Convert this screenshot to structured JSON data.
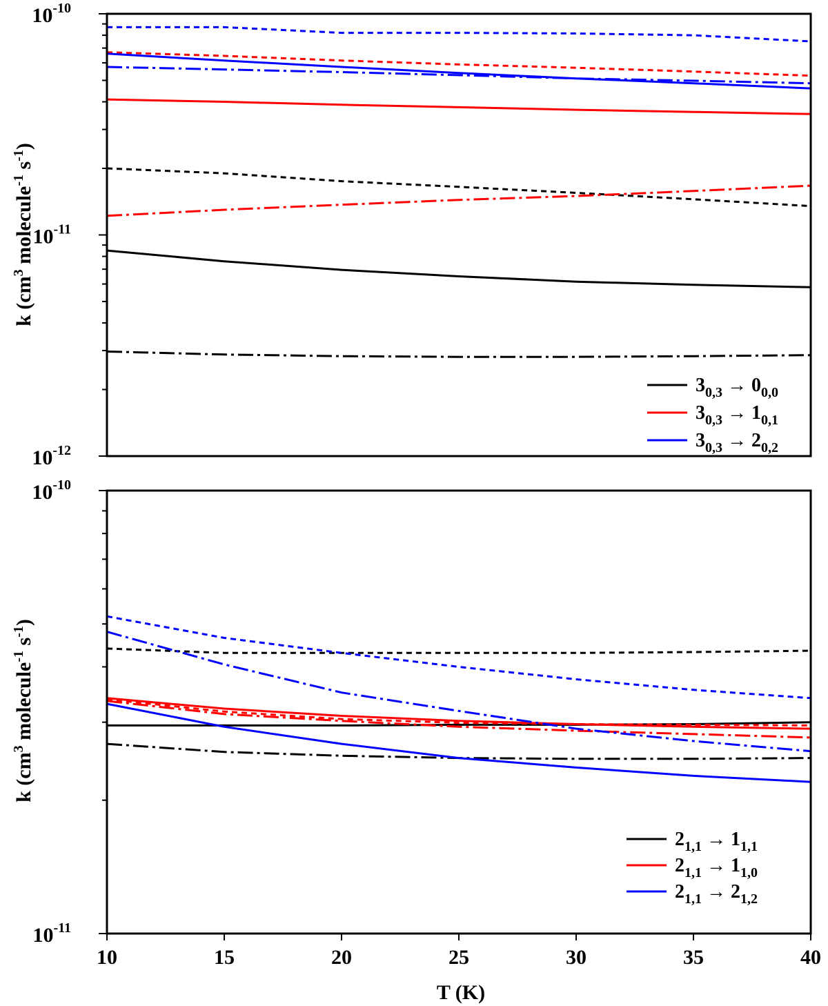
{
  "chart_data": [
    {
      "type": "line",
      "panel": "top",
      "ylabel": "k (cm3 molecule-1 s-1)",
      "ylabel_parts": {
        "main": "k (cm",
        "sup1": "3",
        "mid": " molecule",
        "sup2": "-1",
        "mid2": " s",
        "sup3": "-1",
        "end": ")"
      },
      "xlim": [
        10,
        40
      ],
      "ylim": [
        1e-12,
        1e-10
      ],
      "yscale": "log",
      "ytick_labels": [
        {
          "value": 1e-10,
          "base": "10",
          "exp": "-10"
        },
        {
          "value": 1e-11,
          "base": "10",
          "exp": "-11"
        },
        {
          "value": 1e-12,
          "base": "10",
          "exp": "-12"
        }
      ],
      "legend": [
        {
          "color": "#000000",
          "base": "3",
          "sub": "0,3",
          "arrow": " → ",
          "base2": "0",
          "sub2": "0,0"
        },
        {
          "color": "#ff0000",
          "base": "3",
          "sub": "0,3",
          "arrow": " → ",
          "base2": "1",
          "sub2": "0,1"
        },
        {
          "color": "#0000ff",
          "base": "3",
          "sub": "0,3",
          "arrow": " → ",
          "base2": "2",
          "sub2": "0,2"
        }
      ],
      "series": [
        {
          "name": "3_0,3 → 0_0,0 solid",
          "color": "#000000",
          "style": "solid",
          "x": [
            10,
            15,
            20,
            25,
            30,
            35,
            40
          ],
          "values": [
            8.5e-12,
            7.6e-12,
            6.95e-12,
            6.5e-12,
            6.15e-12,
            5.95e-12,
            5.8e-12
          ]
        },
        {
          "name": "3_0,3 → 0_0,0 dashed",
          "color": "#000000",
          "style": "dashed",
          "x": [
            10,
            15,
            20,
            25,
            30,
            35,
            40
          ],
          "values": [
            2e-11,
            1.9e-11,
            1.75e-11,
            1.65e-11,
            1.55e-11,
            1.45e-11,
            1.35e-11
          ]
        },
        {
          "name": "3_0,3 → 0_0,0 dashdot",
          "color": "#000000",
          "style": "dashdot",
          "x": [
            10,
            15,
            20,
            25,
            30,
            35,
            40
          ],
          "values": [
            2.97e-12,
            2.88e-12,
            2.83e-12,
            2.81e-12,
            2.81e-12,
            2.83e-12,
            2.86e-12
          ]
        },
        {
          "name": "3_0,3 → 1_0,1 solid",
          "color": "#ff0000",
          "style": "solid",
          "x": [
            10,
            15,
            20,
            25,
            30,
            35,
            40
          ],
          "values": [
            4.1e-11,
            4e-11,
            3.88e-11,
            3.78e-11,
            3.68e-11,
            3.6e-11,
            3.52e-11
          ]
        },
        {
          "name": "3_0,3 → 1_0,1 dashed",
          "color": "#ff0000",
          "style": "dashed",
          "x": [
            10,
            15,
            20,
            25,
            30,
            35,
            40
          ],
          "values": [
            6.7e-11,
            6.45e-11,
            6.15e-11,
            5.9e-11,
            5.7e-11,
            5.48e-11,
            5.25e-11
          ]
        },
        {
          "name": "3_0,3 → 1_0,1 dashdot",
          "color": "#ff0000",
          "style": "dashdot",
          "x": [
            10,
            15,
            20,
            25,
            30,
            35,
            40
          ],
          "values": [
            1.22e-11,
            1.3e-11,
            1.37e-11,
            1.44e-11,
            1.5e-11,
            1.58e-11,
            1.67e-11
          ]
        },
        {
          "name": "3_0,3 → 2_0,2 solid",
          "color": "#0000ff",
          "style": "solid",
          "x": [
            10,
            15,
            20,
            25,
            30,
            35,
            40
          ],
          "values": [
            6.6e-11,
            6.15e-11,
            5.75e-11,
            5.4e-11,
            5.1e-11,
            4.85e-11,
            4.6e-11
          ]
        },
        {
          "name": "3_0,3 → 2_0,2 dashed",
          "color": "#0000ff",
          "style": "dashed",
          "x": [
            10,
            15,
            20,
            25,
            30,
            35,
            40
          ],
          "values": [
            8.7e-11,
            8.7e-11,
            8.2e-11,
            8.2e-11,
            8.15e-11,
            8e-11,
            7.5e-11
          ]
        },
        {
          "name": "3_0,3 → 2_0,2 dashdot",
          "color": "#0000ff",
          "style": "dashdot",
          "x": [
            10,
            15,
            20,
            25,
            30,
            35,
            40
          ],
          "values": [
            5.75e-11,
            5.6e-11,
            5.45e-11,
            5.28e-11,
            5.1e-11,
            4.98e-11,
            4.85e-11
          ]
        }
      ]
    },
    {
      "type": "line",
      "panel": "bottom",
      "xlabel": "T (K)",
      "ylabel": "k (cm3 molecule-1 s-1)",
      "ylabel_parts": {
        "main": "k (cm",
        "sup1": "3",
        "mid": " molecule",
        "sup2": "-1",
        "mid2": " s",
        "sup3": "-1",
        "end": ")"
      },
      "xlim": [
        10,
        40
      ],
      "xticks": [
        10,
        15,
        20,
        25,
        30,
        35,
        40
      ],
      "xtick_labels": [
        "10",
        "15",
        "20",
        "25",
        "30",
        "35",
        "40"
      ],
      "ylim": [
        1e-11,
        1e-10
      ],
      "yscale": "log",
      "ytick_labels": [
        {
          "value": 1e-10,
          "base": "10",
          "exp": "-10"
        },
        {
          "value": 1e-11,
          "base": "10",
          "exp": "-11"
        }
      ],
      "legend": [
        {
          "color": "#000000",
          "base": "2",
          "sub": "1,1",
          "arrow": " → ",
          "base2": "1",
          "sub2": "1,1"
        },
        {
          "color": "#ff0000",
          "base": "2",
          "sub": "1,1",
          "arrow": " → ",
          "base2": "1",
          "sub2": "1,0"
        },
        {
          "color": "#0000ff",
          "base": "2",
          "sub": "1,1",
          "arrow": " → ",
          "base2": "2",
          "sub2": "1,2"
        }
      ],
      "series": [
        {
          "name": "2_1,1 → 1_1,1 solid",
          "color": "#000000",
          "style": "solid",
          "x": [
            10,
            15,
            20,
            25,
            30,
            35,
            40
          ],
          "values": [
            2.95e-11,
            2.95e-11,
            2.95e-11,
            2.96e-11,
            2.96e-11,
            2.97e-11,
            3e-11
          ]
        },
        {
          "name": "2_1,1 → 1_1,1 dashed",
          "color": "#000000",
          "style": "dashed",
          "x": [
            10,
            15,
            20,
            25,
            30,
            35,
            40
          ],
          "values": [
            4.4e-11,
            4.3e-11,
            4.3e-11,
            4.3e-11,
            4.3e-11,
            4.32e-11,
            4.35e-11
          ]
        },
        {
          "name": "2_1,1 → 1_1,1 dashdot",
          "color": "#000000",
          "style": "dashdot",
          "x": [
            10,
            15,
            20,
            25,
            30,
            35,
            40
          ],
          "values": [
            2.68e-11,
            2.57e-11,
            2.52e-11,
            2.49e-11,
            2.48e-11,
            2.48e-11,
            2.49e-11
          ]
        },
        {
          "name": "2_1,1 → 1_1,0 solid",
          "color": "#ff0000",
          "style": "solid",
          "x": [
            10,
            15,
            20,
            25,
            30,
            35,
            40
          ],
          "values": [
            3.4e-11,
            3.22e-11,
            3.1e-11,
            3.02e-11,
            2.97e-11,
            2.93e-11,
            2.9e-11
          ]
        },
        {
          "name": "2_1,1 → 1_1,0 dashed",
          "color": "#ff0000",
          "style": "dashed",
          "x": [
            10,
            15,
            20,
            25,
            30,
            35,
            40
          ],
          "values": [
            3.38e-11,
            3.17e-11,
            3.05e-11,
            2.99e-11,
            2.97e-11,
            2.96e-11,
            2.95e-11
          ]
        },
        {
          "name": "2_1,1 → 1_1,0 dashdot",
          "color": "#ff0000",
          "style": "dashdot",
          "x": [
            10,
            15,
            20,
            25,
            30,
            35,
            40
          ],
          "values": [
            3.35e-11,
            3.13e-11,
            3.02e-11,
            2.93e-11,
            2.87e-11,
            2.82e-11,
            2.77e-11
          ]
        },
        {
          "name": "2_1,1 → 2_1,2 solid",
          "color": "#0000ff",
          "style": "solid",
          "x": [
            10,
            15,
            20,
            25,
            30,
            35,
            40
          ],
          "values": [
            3.3e-11,
            2.93e-11,
            2.68e-11,
            2.49e-11,
            2.37e-11,
            2.27e-11,
            2.2e-11
          ]
        },
        {
          "name": "2_1,1 → 2_1,2 dashed",
          "color": "#0000ff",
          "style": "dashed",
          "x": [
            10,
            15,
            20,
            25,
            30,
            35,
            40
          ],
          "values": [
            5.2e-11,
            4.65e-11,
            4.3e-11,
            4e-11,
            3.75e-11,
            3.55e-11,
            3.4e-11
          ]
        },
        {
          "name": "2_1,1 → 2_1,2 dashdot",
          "color": "#0000ff",
          "style": "dashdot",
          "x": [
            10,
            15,
            20,
            25,
            30,
            35,
            40
          ],
          "values": [
            4.8e-11,
            4.05e-11,
            3.5e-11,
            3.18e-11,
            2.9e-11,
            2.72e-11,
            2.58e-11
          ]
        }
      ]
    }
  ]
}
